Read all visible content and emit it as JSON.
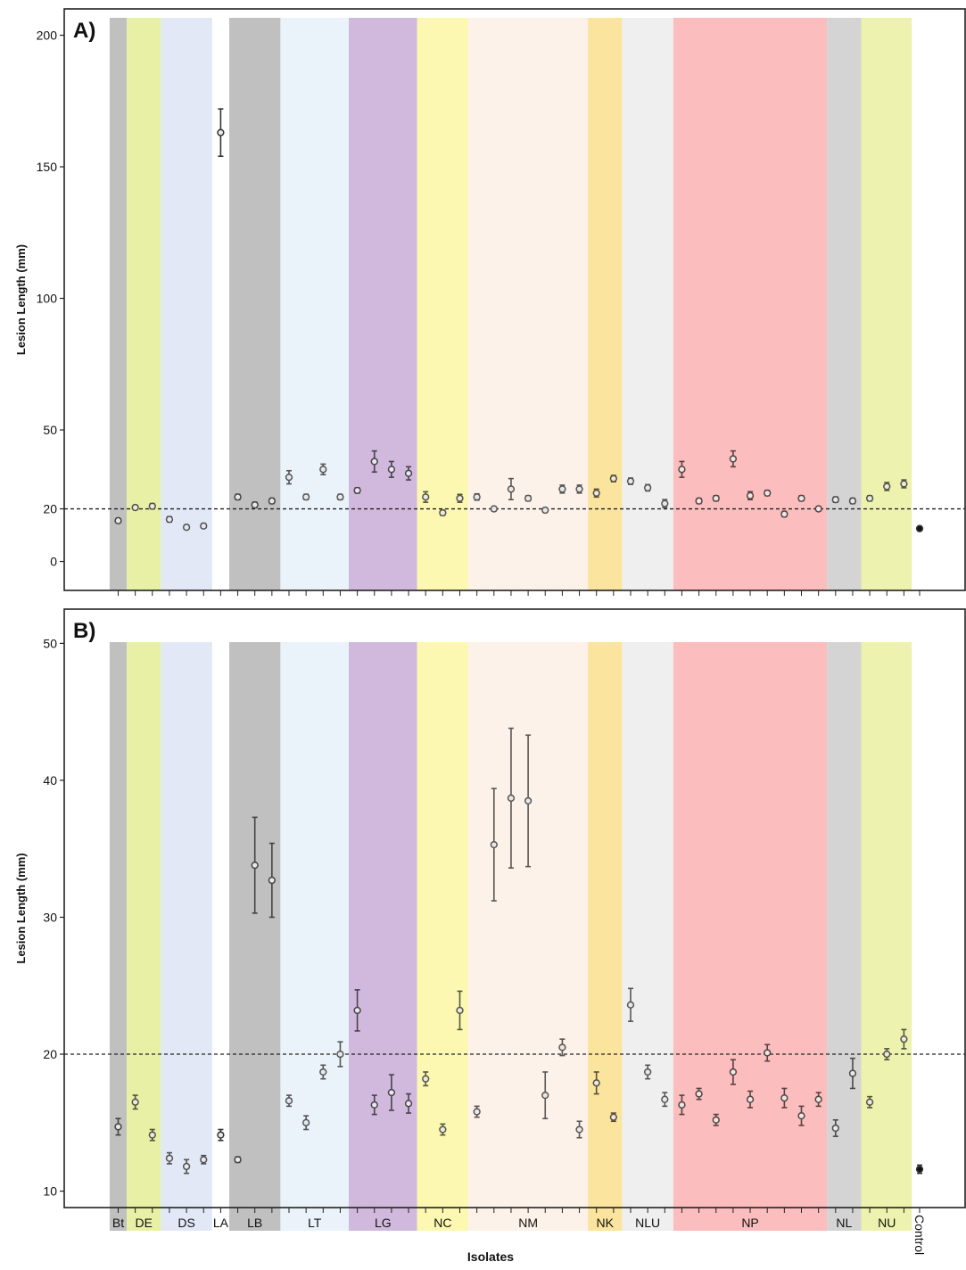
{
  "figure": {
    "xlabel": "Isolates",
    "reference_line": 20,
    "groups": [
      {
        "label": "Bt",
        "n": 1,
        "color": "#c0c0c0"
      },
      {
        "label": "DE",
        "n": 2,
        "color": "#e8f0a6"
      },
      {
        "label": "DS",
        "n": 3,
        "color": "#e2e8f6"
      },
      {
        "label": "LA",
        "n": 1,
        "color": "#ffffff"
      },
      {
        "label": "LB",
        "n": 3,
        "color": "#c0c0c0"
      },
      {
        "label": "LT",
        "n": 4,
        "color": "#eaf3fa"
      },
      {
        "label": "LG",
        "n": 4,
        "color": "#d1b9de"
      },
      {
        "label": "NC",
        "n": 3,
        "color": "#fcf8b2"
      },
      {
        "label": "NM",
        "n": 7,
        "color": "#fdf2ea"
      },
      {
        "label": "NK",
        "n": 2,
        "color": "#fbe49e"
      },
      {
        "label": "NLU",
        "n": 3,
        "color": "#efefef"
      },
      {
        "label": "NP",
        "n": 9,
        "color": "#fbbdbd"
      },
      {
        "label": "NL",
        "n": 2,
        "color": "#d4d4d4"
      },
      {
        "label": "NU",
        "n": 3,
        "color": "#edf3ae"
      },
      {
        "label": "Control",
        "n": 1,
        "color": "#ffffff"
      }
    ]
  },
  "chart_data": [
    {
      "type": "scatter",
      "panel": "A)",
      "title": "",
      "xlabel": "",
      "ylabel": "Lesion Length (mm)",
      "ylim": [
        -11,
        210
      ],
      "yticks": [
        0,
        20,
        50,
        100,
        150,
        200
      ],
      "grid": false,
      "reference_line": 20,
      "series": [
        {
          "name": "",
          "values": [
            15.5,
            20.5,
            21,
            16,
            13,
            13.5,
            163,
            24.5,
            21.5,
            23,
            32,
            24.5,
            35,
            24.5,
            27,
            38,
            35,
            33.5,
            24.5,
            18.5,
            24,
            24.5,
            20,
            27.5,
            24,
            19.5,
            27.5,
            27.5,
            26,
            31.5,
            30.5,
            28,
            22,
            35,
            23,
            24,
            39,
            25,
            26,
            18,
            24,
            20,
            23.5,
            23,
            24,
            28.5,
            29.5,
            12.5
          ],
          "errors": [
            0.8,
            0.8,
            1,
            1,
            0.8,
            0.8,
            9,
            1,
            1,
            1,
            2.5,
            1,
            2,
            1,
            1,
            4,
            3,
            2.5,
            2,
            1,
            1.5,
            1.2,
            0.8,
            4,
            1,
            0.8,
            1.5,
            1.5,
            1.5,
            1.2,
            1.2,
            1.2,
            1.5,
            3,
            1,
            1,
            3,
            1.5,
            1,
            1,
            1,
            0.8,
            1,
            1,
            1,
            1.5,
            1.5,
            0.8
          ]
        }
      ]
    },
    {
      "type": "scatter",
      "panel": "B)",
      "title": "",
      "xlabel": "Isolates",
      "ylabel": "Lesion Length (mm)",
      "ylim": [
        8.8,
        52.5
      ],
      "yticks": [
        10,
        20,
        30,
        40,
        50
      ],
      "grid": false,
      "reference_line": 20,
      "series": [
        {
          "name": "",
          "values": [
            14.7,
            16.5,
            14.1,
            12.4,
            11.8,
            12.3,
            14.1,
            12.3,
            33.8,
            32.7,
            16.6,
            15.0,
            18.7,
            20.0,
            23.2,
            16.3,
            17.2,
            16.4,
            18.2,
            14.5,
            23.2,
            15.8,
            35.3,
            38.7,
            38.5,
            17.0,
            20.5,
            14.5,
            17.9,
            15.4,
            23.6,
            18.7,
            16.7,
            16.3,
            17.1,
            15.2,
            18.7,
            16.7,
            20.1,
            16.8,
            15.5,
            16.7,
            14.6,
            18.6,
            16.5,
            20.0,
            21.1,
            11.6
          ],
          "errors": [
            0.6,
            0.5,
            0.4,
            0.4,
            0.5,
            0.3,
            0.4,
            0.2,
            3.5,
            2.7,
            0.4,
            0.5,
            0.5,
            0.9,
            1.5,
            0.7,
            1.3,
            0.7,
            0.5,
            0.4,
            1.4,
            0.4,
            4.1,
            5.1,
            4.8,
            1.7,
            0.6,
            0.6,
            0.8,
            0.3,
            1.2,
            0.5,
            0.5,
            0.7,
            0.4,
            0.4,
            0.9,
            0.6,
            0.6,
            0.7,
            0.7,
            0.5,
            0.6,
            1.1,
            0.4,
            0.4,
            0.7,
            0.3
          ]
        }
      ]
    }
  ]
}
